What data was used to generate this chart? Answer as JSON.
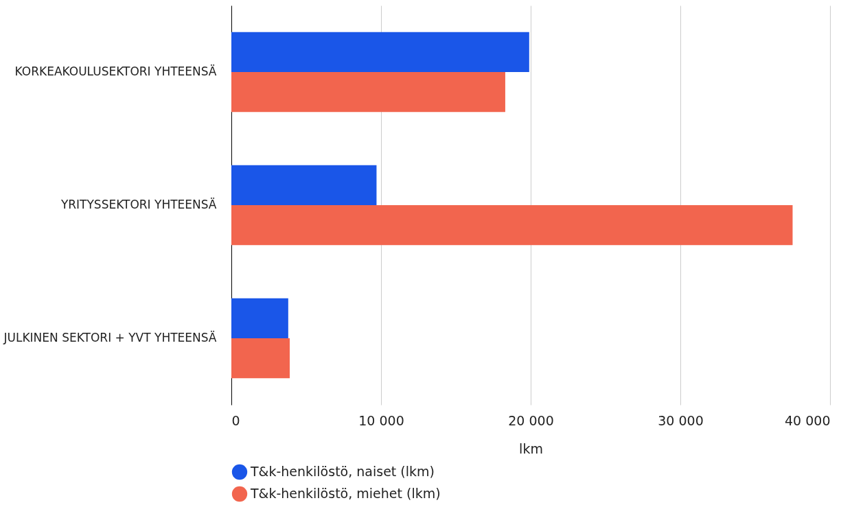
{
  "chart_data": {
    "type": "bar",
    "orientation": "horizontal",
    "xlabel": "lkm",
    "categories": [
      "KORKEAKOULUSEKTORI YHTEENSÄ",
      "YRITYSSEKTORI YHTEENSÄ",
      "JULKINEN SEKTORI + YVT YHTEENSÄ"
    ],
    "series": [
      {
        "name": "T&k-henkilöstö, naiset (lkm)",
        "color": "#1a56e8",
        "values": [
          19900,
          9700,
          3800
        ]
      },
      {
        "name": "T&k-henkilöstö, miehet (lkm)",
        "color": "#f2654e",
        "values": [
          18300,
          37500,
          3900
        ]
      }
    ],
    "xlim": [
      0,
      40000
    ],
    "xticks": [
      0,
      {
        "value": 10000,
        "label": "10 000"
      },
      {
        "value": 20000,
        "label": "20 000"
      },
      {
        "value": 30000,
        "label": "30 000"
      },
      {
        "value": 40000,
        "label": "40 000"
      }
    ],
    "grid": "x",
    "legend": "bottom"
  }
}
